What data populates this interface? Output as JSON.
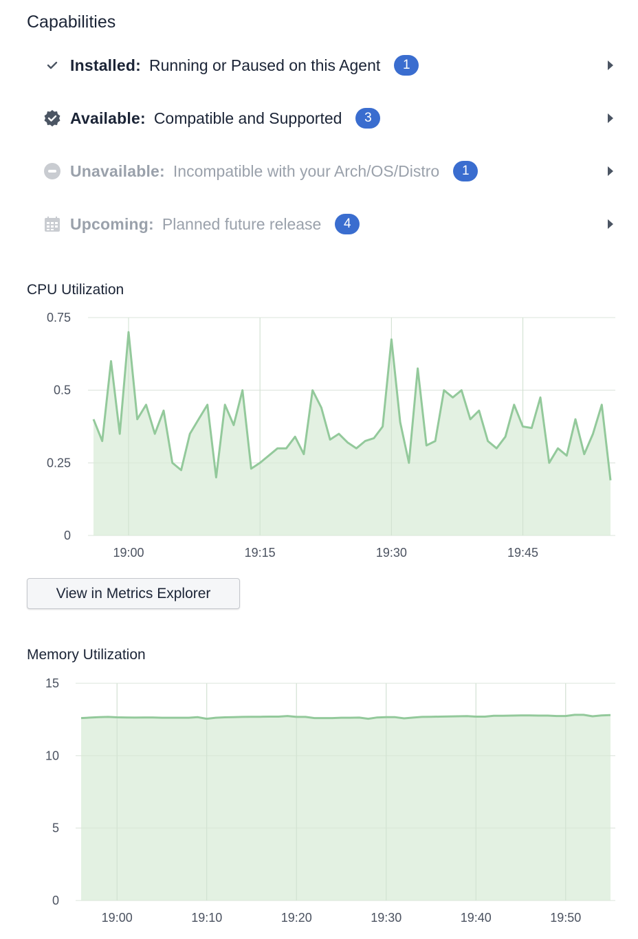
{
  "capabilities": {
    "title": "Capabilities",
    "rows": [
      {
        "label": "Installed:",
        "description": "Running or Paused on this Agent",
        "count": "1",
        "icon": "check-icon",
        "dimmed": false
      },
      {
        "label": "Available:",
        "description": "Compatible and Supported",
        "count": "3",
        "icon": "verified-badge-icon",
        "dimmed": false
      },
      {
        "label": "Unavailable:",
        "description": "Incompatible with your Arch/OS/Distro",
        "count": "1",
        "icon": "minus-circle-icon",
        "dimmed": true
      },
      {
        "label": "Upcoming:",
        "description": "Planned future release",
        "count": "4",
        "icon": "calendar-icon",
        "dimmed": true
      }
    ],
    "badge_color": "#3a6dcf"
  },
  "cpu": {
    "title": "CPU Utilization",
    "button_label": "View in Metrics Explorer"
  },
  "memory": {
    "title": "Memory Utilization"
  },
  "chart_data": [
    {
      "type": "area",
      "title": "CPU Utilization",
      "xlabel": "",
      "ylabel": "",
      "x_start": "18:56",
      "x_interval_minutes": 1,
      "x_ticks": [
        "19:00",
        "19:15",
        "19:30",
        "19:45"
      ],
      "y_ticks": [
        "0",
        "0.25",
        "0.5",
        "0.75"
      ],
      "ylim": [
        0,
        0.75
      ],
      "grid": true,
      "color": "#93c99b",
      "fill": "#deeedd",
      "values": [
        0.4,
        0.325,
        0.6,
        0.35,
        0.7,
        0.4,
        0.45,
        0.35,
        0.43,
        0.25,
        0.225,
        0.35,
        0.4,
        0.45,
        0.2,
        0.45,
        0.38,
        0.5,
        0.23,
        0.25,
        0.275,
        0.3,
        0.3,
        0.34,
        0.28,
        0.5,
        0.44,
        0.33,
        0.35,
        0.32,
        0.3,
        0.325,
        0.335,
        0.375,
        0.675,
        0.39,
        0.25,
        0.575,
        0.31,
        0.325,
        0.5,
        0.475,
        0.5,
        0.4,
        0.43,
        0.325,
        0.3,
        0.34,
        0.45,
        0.375,
        0.37,
        0.475,
        0.25,
        0.3,
        0.275,
        0.4,
        0.28,
        0.35,
        0.45,
        0.19
      ]
    },
    {
      "type": "area",
      "title": "Memory Utilization",
      "xlabel": "",
      "ylabel": "",
      "x_start": "18:56",
      "x_interval_minutes": 1,
      "x_ticks": [
        "19:00",
        "19:10",
        "19:20",
        "19:30",
        "19:40",
        "19:50"
      ],
      "y_ticks": [
        "0",
        "5",
        "10",
        "15"
      ],
      "ylim": [
        0,
        15
      ],
      "grid": true,
      "color": "#93c99b",
      "fill": "#deeedd",
      "values": [
        12.6,
        12.63,
        12.66,
        12.68,
        12.65,
        12.64,
        12.63,
        12.64,
        12.64,
        12.62,
        12.62,
        12.62,
        12.62,
        12.66,
        12.55,
        12.62,
        12.65,
        12.66,
        12.68,
        12.69,
        12.69,
        12.7,
        12.7,
        12.74,
        12.68,
        12.68,
        12.6,
        12.6,
        12.6,
        12.62,
        12.62,
        12.63,
        12.55,
        12.64,
        12.66,
        12.66,
        12.58,
        12.63,
        12.68,
        12.69,
        12.7,
        12.71,
        12.72,
        12.73,
        12.7,
        12.7,
        12.76,
        12.76,
        12.77,
        12.78,
        12.78,
        12.77,
        12.77,
        12.74,
        12.74,
        12.82,
        12.82,
        12.72,
        12.78,
        12.8
      ]
    }
  ]
}
